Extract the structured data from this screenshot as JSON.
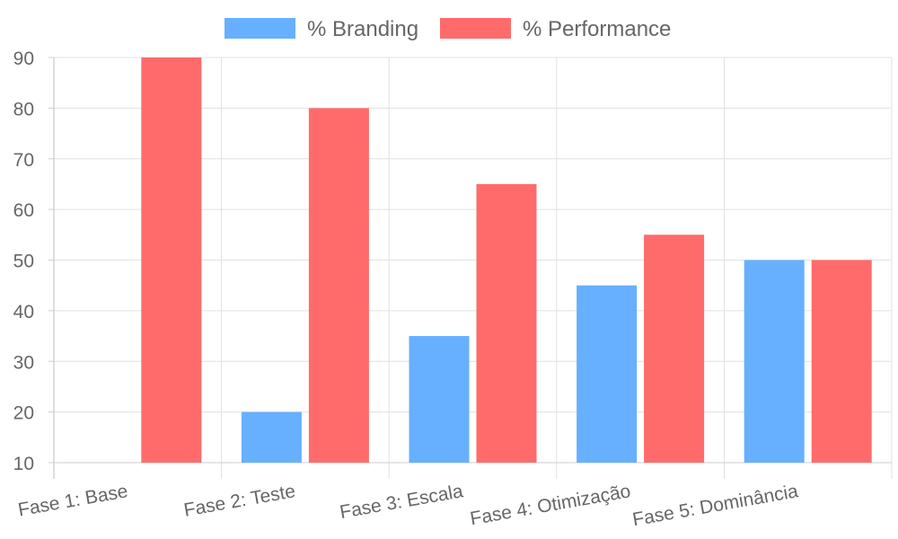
{
  "chart_data": {
    "type": "bar",
    "categories": [
      "Fase 1: Base",
      "Fase 2: Teste",
      "Fase 3: Escala",
      "Fase 4: Otimização",
      "Fase 5: Dominância"
    ],
    "series": [
      {
        "name": "% Branding",
        "values": [
          10,
          20,
          35,
          45,
          50
        ],
        "color": "#66b0ff"
      },
      {
        "name": "% Performance",
        "values": [
          90,
          80,
          65,
          55,
          50
        ],
        "color": "#ff6b6b"
      }
    ],
    "ylim": [
      10,
      90
    ],
    "yticks": [
      10,
      20,
      30,
      40,
      50,
      60,
      70,
      80,
      90
    ],
    "grid": true,
    "legend_position": "top-center",
    "title": "",
    "xlabel": "",
    "ylabel": ""
  }
}
